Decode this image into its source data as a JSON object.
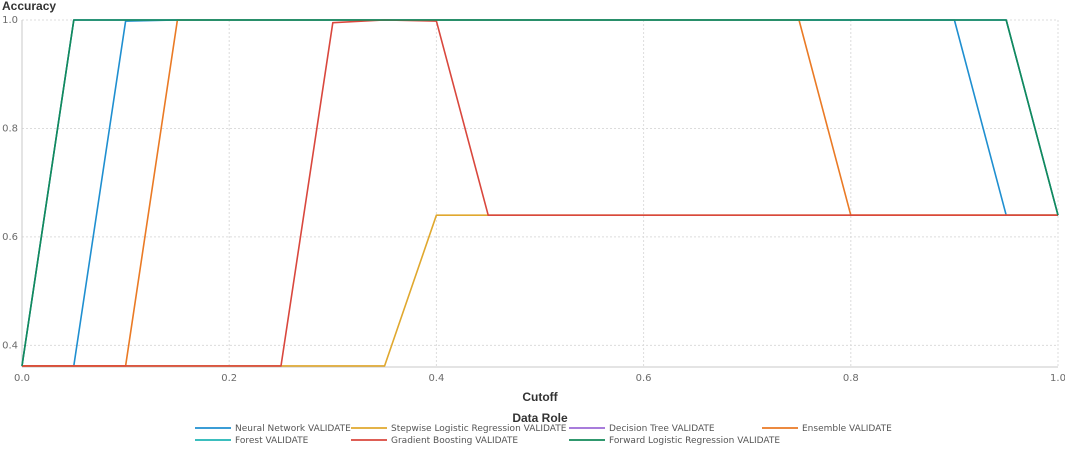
{
  "chart_data": {
    "type": "line",
    "xlabel": "Cutoff",
    "ylabel": "Accuracy",
    "xlim": [
      0,
      1
    ],
    "ylim": [
      0.36,
      1.0
    ],
    "xticks": [
      0.0,
      0.2,
      0.4,
      0.6,
      0.8,
      1.0
    ],
    "xtick_labels": [
      "0.0",
      "0.2",
      "0.4",
      "0.6",
      "0.8",
      "1.0"
    ],
    "yticks": [
      0.4,
      0.6,
      0.8,
      1.0
    ],
    "ytick_labels": [
      "0.4",
      "0.6",
      "0.8",
      "1.0"
    ],
    "grid": true,
    "legend_title": "Data Role",
    "legend_position": "bottom",
    "series": [
      {
        "name": "Neural Network VALIDATE",
        "color": "#1f8fd0",
        "points": [
          [
            0,
            0.362
          ],
          [
            0.05,
            0.362
          ],
          [
            0.1,
            0.998
          ],
          [
            0.15,
            1.0
          ],
          [
            0.9,
            1.0
          ],
          [
            0.95,
            0.64
          ],
          [
            1.0,
            0.64
          ]
        ]
      },
      {
        "name": "Stepwise Logistic Regression VALIDATE",
        "color": "#e0a82e",
        "points": [
          [
            0,
            0.362
          ],
          [
            0.35,
            0.362
          ],
          [
            0.4,
            0.64
          ],
          [
            1.0,
            0.64
          ]
        ]
      },
      {
        "name": "Decision Tree VALIDATE",
        "color": "#9b6ad6",
        "points": [
          [
            0,
            0.362
          ],
          [
            0.05,
            1.0
          ],
          [
            0.95,
            1.0
          ],
          [
            1.0,
            0.64
          ]
        ]
      },
      {
        "name": "Ensemble VALIDATE",
        "color": "#ea7a25",
        "points": [
          [
            0,
            0.362
          ],
          [
            0.1,
            0.362
          ],
          [
            0.15,
            1.0
          ],
          [
            0.75,
            1.0
          ],
          [
            0.8,
            0.64
          ],
          [
            1.0,
            0.64
          ]
        ]
      },
      {
        "name": "Forest VALIDATE",
        "color": "#1fb5b5",
        "points": [
          [
            0,
            0.362
          ],
          [
            0.05,
            1.0
          ],
          [
            0.95,
            1.0
          ],
          [
            1.0,
            0.64
          ]
        ]
      },
      {
        "name": "Gradient Boosting VALIDATE",
        "color": "#d9473d",
        "points": [
          [
            0,
            0.362
          ],
          [
            0.25,
            0.362
          ],
          [
            0.3,
            0.995
          ],
          [
            0.35,
            1.0
          ],
          [
            0.4,
            0.998
          ],
          [
            0.45,
            0.64
          ],
          [
            1.0,
            0.64
          ]
        ]
      },
      {
        "name": "Forward Logistic Regression VALIDATE",
        "color": "#128a5a",
        "points": [
          [
            0,
            0.362
          ],
          [
            0.05,
            1.0
          ],
          [
            0.95,
            1.0
          ],
          [
            1.0,
            0.64
          ]
        ]
      }
    ]
  }
}
